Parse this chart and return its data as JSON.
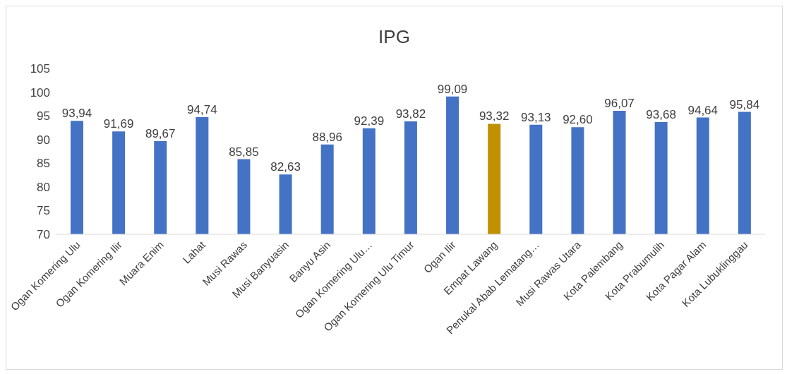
{
  "chart_data": {
    "type": "bar",
    "title": "IPG",
    "categories": [
      "Ogan Komering Ulu",
      "Ogan Komering Ilir",
      "Muara Enim",
      "Lahat",
      "Musi Rawas",
      "Musi Banyuasin",
      "Banyu Asin",
      "Ogan Komering Ulu…",
      "Ogan Komering Ulu Timur",
      "Ogan Ilir",
      "Empat Lawang",
      "Penukal Abab Lematang…",
      "Musi Rawas Utara",
      "Kota Palembang",
      "Kota Prabumulih",
      "Kota Pagar Alam",
      "Kota Lubuklinggau"
    ],
    "values": [
      93.94,
      91.69,
      89.67,
      94.74,
      85.85,
      82.63,
      88.96,
      92.39,
      93.82,
      99.09,
      93.32,
      93.13,
      92.6,
      96.07,
      93.68,
      94.64,
      95.84
    ],
    "value_labels": [
      "93,94",
      "91,69",
      "89,67",
      "94,74",
      "85,85",
      "82,63",
      "88,96",
      "92,39",
      "93,82",
      "99,09",
      "93,32",
      "93,13",
      "92,60",
      "96,07",
      "93,68",
      "94,64",
      "95,84"
    ],
    "colors": [
      "#4472c4",
      "#4472c4",
      "#4472c4",
      "#4472c4",
      "#4472c4",
      "#4472c4",
      "#4472c4",
      "#4472c4",
      "#4472c4",
      "#4472c4",
      "#bf9000",
      "#4472c4",
      "#4472c4",
      "#4472c4",
      "#4472c4",
      "#4472c4",
      "#4472c4"
    ],
    "ylim": [
      70,
      105
    ],
    "yticks": [
      70,
      75,
      80,
      85,
      90,
      95,
      100,
      105
    ],
    "grid": false
  }
}
